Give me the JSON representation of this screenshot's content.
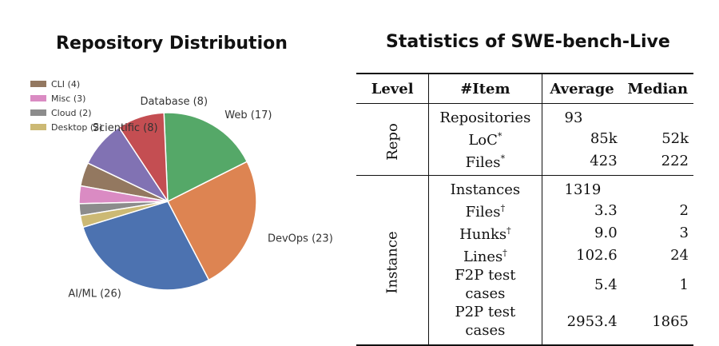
{
  "chart_data": [
    {
      "type": "pie",
      "title": "Repository Distribution",
      "slices": [
        {
          "label": "AI/ML (26)",
          "value": 26,
          "color": "#4C72B0"
        },
        {
          "label": "DevOps (23)",
          "value": 23,
          "color": "#DD8452"
        },
        {
          "label": "Web (17)",
          "value": 17,
          "color": "#55A868"
        },
        {
          "label": "Database (8)",
          "value": 8,
          "color": "#C44E52"
        },
        {
          "label": "Scientific (8)",
          "value": 8,
          "color": "#8172B3"
        },
        {
          "label": "CLI (4)",
          "value": 4,
          "color": "#937860"
        },
        {
          "label": "Misc (3)",
          "value": 3,
          "color": "#DA8BC3"
        },
        {
          "label": "Cloud (2)",
          "value": 2,
          "color": "#8C8C8C"
        },
        {
          "label": "Desktop (2)",
          "value": 2,
          "color": "#CCB974"
        }
      ],
      "legend": {
        "placement": "top-left",
        "entries": [
          "CLI (4)",
          "Misc (3)",
          "Cloud (2)",
          "Desktop (2)"
        ]
      }
    },
    {
      "type": "table",
      "title": "Statistics of SWE-bench-Live",
      "columns": [
        "Level",
        "#Item",
        "Average",
        "Median"
      ],
      "groups": [
        {
          "level": "Repo",
          "rows": [
            {
              "item": "Repositories",
              "mark": "",
              "average": "93",
              "median": "",
              "merged": true
            },
            {
              "item": "LoC",
              "mark": "*",
              "average": "85k",
              "median": "52k",
              "merged": false
            },
            {
              "item": "Files",
              "mark": "*",
              "average": "423",
              "median": "222",
              "merged": false
            }
          ]
        },
        {
          "level": "Instance",
          "rows": [
            {
              "item": "Instances",
              "mark": "",
              "average": "1319",
              "median": "",
              "merged": true
            },
            {
              "item": "Files",
              "mark": "†",
              "average": "3.3",
              "median": "2",
              "merged": false
            },
            {
              "item": "Hunks",
              "mark": "†",
              "average": "9.0",
              "median": "3",
              "merged": false
            },
            {
              "item": "Lines",
              "mark": "†",
              "average": "102.6",
              "median": "24",
              "merged": false
            },
            {
              "item": "F2P test cases",
              "mark": "",
              "average": "5.4",
              "median": "1",
              "merged": false
            },
            {
              "item": "P2P test cases",
              "mark": "",
              "average": "2953.4",
              "median": "1865",
              "merged": false
            }
          ]
        }
      ]
    }
  ]
}
